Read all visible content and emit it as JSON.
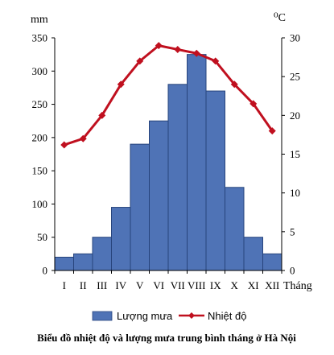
{
  "chart_data": {
    "type": "bar-line",
    "categories": [
      "I",
      "II",
      "III",
      "IV",
      "V",
      "VI",
      "VII",
      "VIII",
      "IX",
      "X",
      "XI",
      "XII"
    ],
    "x_axis_unit": "Tháng",
    "left_axis_unit": "mm",
    "right_axis_unit": "⁰C",
    "left_ylim": [
      0,
      350
    ],
    "left_ticks": [
      0,
      50,
      100,
      150,
      200,
      250,
      300,
      350
    ],
    "right_ylim": [
      0,
      30
    ],
    "right_ticks": [
      0,
      5,
      10,
      15,
      20,
      25,
      30
    ],
    "series": [
      {
        "name": "Lượng mưa",
        "type": "bar",
        "axis": "left",
        "color": "#4f73b6",
        "values": [
          20,
          25,
          50,
          95,
          190,
          225,
          280,
          325,
          270,
          125,
          50,
          25
        ]
      },
      {
        "name": "Nhiệt độ",
        "type": "line",
        "axis": "right",
        "color": "#c0101f",
        "values": [
          16.2,
          17,
          20,
          24,
          27,
          29,
          28.5,
          28,
          27,
          24,
          21.5,
          18
        ]
      }
    ],
    "grid": false,
    "legend_position": "bottom",
    "caption": "Biểu đồ nhiệt độ và lượng mưa trung bình tháng ở Hà Nội"
  }
}
